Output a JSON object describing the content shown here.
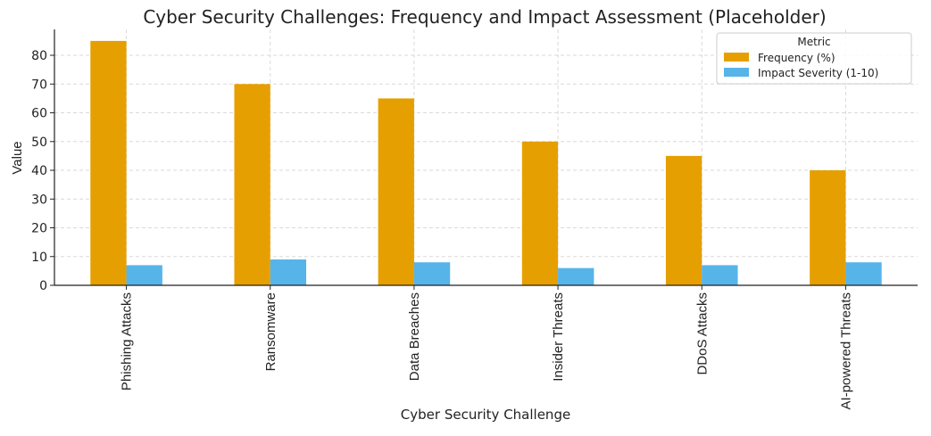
{
  "chart_data": {
    "type": "bar",
    "title": "Cyber Security Challenges: Frequency and Impact Assessment (Placeholder)",
    "xlabel": "Cyber Security Challenge",
    "ylabel": "Value",
    "categories": [
      "Phishing Attacks",
      "Ransomware",
      "Data Breaches",
      "Insider Threats",
      "DDoS Attacks",
      "AI-powered Threats"
    ],
    "series": [
      {
        "name": "Frequency (%)",
        "color": "#E69F00",
        "values": [
          85,
          70,
          65,
          50,
          45,
          40
        ]
      },
      {
        "name": "Impact Severity (1-10)",
        "color": "#56B4E9",
        "values": [
          7,
          9,
          8,
          6,
          7,
          8
        ]
      }
    ],
    "ylim": [
      0,
      89
    ],
    "yticks": [
      0,
      10,
      20,
      30,
      40,
      50,
      60,
      70,
      80
    ],
    "grid": true,
    "legend": {
      "title": "Metric",
      "placement": "top-right"
    }
  }
}
